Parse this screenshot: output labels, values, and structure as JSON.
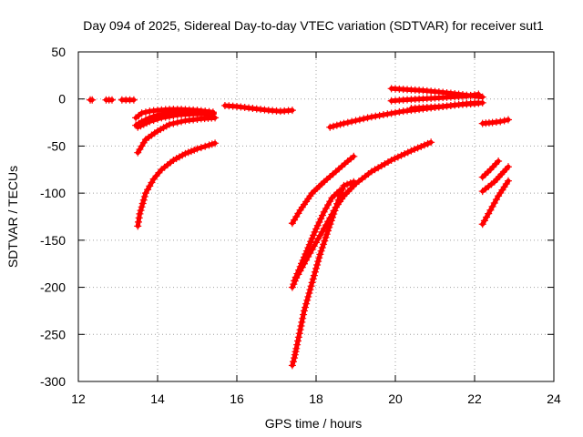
{
  "chart_data": {
    "type": "scatter",
    "title": "Day 094 of 2025, Sidereal Day-to-day VTEC variation (SDTVAR) for receiver sut1",
    "xlabel": "GPS time / hours",
    "ylabel": "SDTVAR / TECUs",
    "xlim": [
      12,
      24
    ],
    "ylim": [
      -300,
      50
    ],
    "xticks": [
      12,
      14,
      16,
      18,
      20,
      22,
      24
    ],
    "yticks": [
      50,
      0,
      -50,
      -100,
      -150,
      -200,
      -250,
      -300
    ],
    "xtick_labels": [
      "12",
      "14",
      "16",
      "18",
      "20",
      "22",
      "24"
    ],
    "ytick_labels": [
      "50",
      "0",
      "-50",
      "-100",
      "-150",
      "-200",
      "-250",
      "-300"
    ],
    "grid": true,
    "marker": "plus",
    "series_color": "#ff0000",
    "segments": [
      {
        "x": [
          12.3,
          12.35
        ],
        "y": [
          -1,
          -1
        ]
      },
      {
        "x": [
          12.7,
          12.85
        ],
        "y": [
          -1,
          -1
        ]
      },
      {
        "x": [
          13.1,
          13.2,
          13.3,
          13.4
        ],
        "y": [
          -1,
          -1,
          -1,
          -1
        ]
      },
      {
        "x": [
          13.45,
          13.6,
          13.8,
          14.0,
          14.3,
          14.6,
          15.0,
          15.4
        ],
        "y": [
          -20,
          -15,
          -13,
          -12,
          -11,
          -11,
          -12,
          -14
        ]
      },
      {
        "x": [
          13.45,
          13.6,
          13.8,
          14.0,
          14.3,
          14.7,
          15.1,
          15.4
        ],
        "y": [
          -28,
          -24,
          -20,
          -17,
          -15,
          -14,
          -14,
          -15
        ]
      },
      {
        "x": [
          13.5,
          13.8,
          14.1,
          14.5,
          14.9,
          15.2,
          15.4
        ],
        "y": [
          -30,
          -24,
          -20,
          -17,
          -16,
          -16,
          -16
        ]
      },
      {
        "x": [
          13.5,
          13.7,
          14.0,
          14.3,
          14.7,
          15.1,
          15.45
        ],
        "y": [
          -57,
          -43,
          -34,
          -27,
          -23,
          -21,
          -20
        ]
      },
      {
        "x": [
          13.5,
          13.55,
          13.7,
          13.9,
          14.1,
          14.4,
          14.7,
          15.0,
          15.3,
          15.45
        ],
        "y": [
          -135,
          -122,
          -100,
          -85,
          -75,
          -65,
          -58,
          -53,
          -49,
          -47
        ]
      },
      {
        "x": [
          15.7,
          16.0,
          16.4,
          16.8,
          17.1,
          17.4
        ],
        "y": [
          -7,
          -8,
          -10,
          -12,
          -13,
          -12
        ]
      },
      {
        "x": [
          17.4,
          17.45,
          17.5,
          17.6,
          17.7,
          17.9,
          18.1,
          18.3,
          18.5,
          18.7,
          18.95
        ],
        "y": [
          -283,
          -275,
          -265,
          -245,
          -225,
          -195,
          -165,
          -140,
          -115,
          -92,
          -88
        ]
      },
      {
        "x": [
          17.4,
          17.5,
          17.7,
          17.9,
          18.1,
          18.3,
          18.5,
          18.7,
          19.0,
          19.4,
          19.9,
          20.4,
          20.9
        ],
        "y": [
          -200,
          -190,
          -175,
          -160,
          -145,
          -130,
          -115,
          -103,
          -90,
          -77,
          -65,
          -55,
          -46
        ]
      },
      {
        "x": [
          17.45,
          17.6,
          17.8,
          18.0,
          18.2,
          18.4,
          18.6
        ],
        "y": [
          -193,
          -178,
          -158,
          -138,
          -120,
          -105,
          -97
        ]
      },
      {
        "x": [
          17.4,
          17.6,
          17.9,
          18.2,
          18.5,
          18.8,
          18.95
        ],
        "y": [
          -132,
          -118,
          -100,
          -88,
          -77,
          -66,
          -61
        ]
      },
      {
        "x": [
          18.35,
          18.7,
          19.0,
          19.4,
          19.8,
          20.2,
          20.6,
          21.0,
          21.4,
          21.8,
          22.1
        ],
        "y": [
          -30,
          -26,
          -23,
          -19,
          -16,
          -13,
          -11,
          -9,
          -7,
          -5,
          -4
        ]
      },
      {
        "x": [
          19.9,
          20.2,
          20.6,
          21.0,
          21.4,
          21.8,
          22.1
        ],
        "y": [
          -2,
          -1,
          0,
          1,
          2,
          3,
          5
        ]
      },
      {
        "x": [
          19.9,
          20.3,
          20.7,
          21.2,
          21.6,
          22.0,
          22.2
        ],
        "y": [
          11,
          10,
          9,
          7,
          5,
          3,
          2
        ]
      },
      {
        "x": [
          20.4,
          20.8,
          21.2,
          21.6,
          22.0,
          22.2
        ],
        "y": [
          -10,
          -9,
          -8,
          -6,
          -5,
          -4
        ]
      },
      {
        "x": [
          22.2,
          22.45,
          22.65,
          22.85
        ],
        "y": [
          -26,
          -25,
          -24,
          -22
        ]
      },
      {
        "x": [
          22.2,
          22.4,
          22.6
        ],
        "y": [
          -83,
          -75,
          -66
        ]
      },
      {
        "x": [
          22.2,
          22.5,
          22.85
        ],
        "y": [
          -98,
          -88,
          -72
        ]
      },
      {
        "x": [
          22.2,
          22.4,
          22.6,
          22.85
        ],
        "y": [
          -133,
          -118,
          -103,
          -87
        ]
      }
    ]
  }
}
